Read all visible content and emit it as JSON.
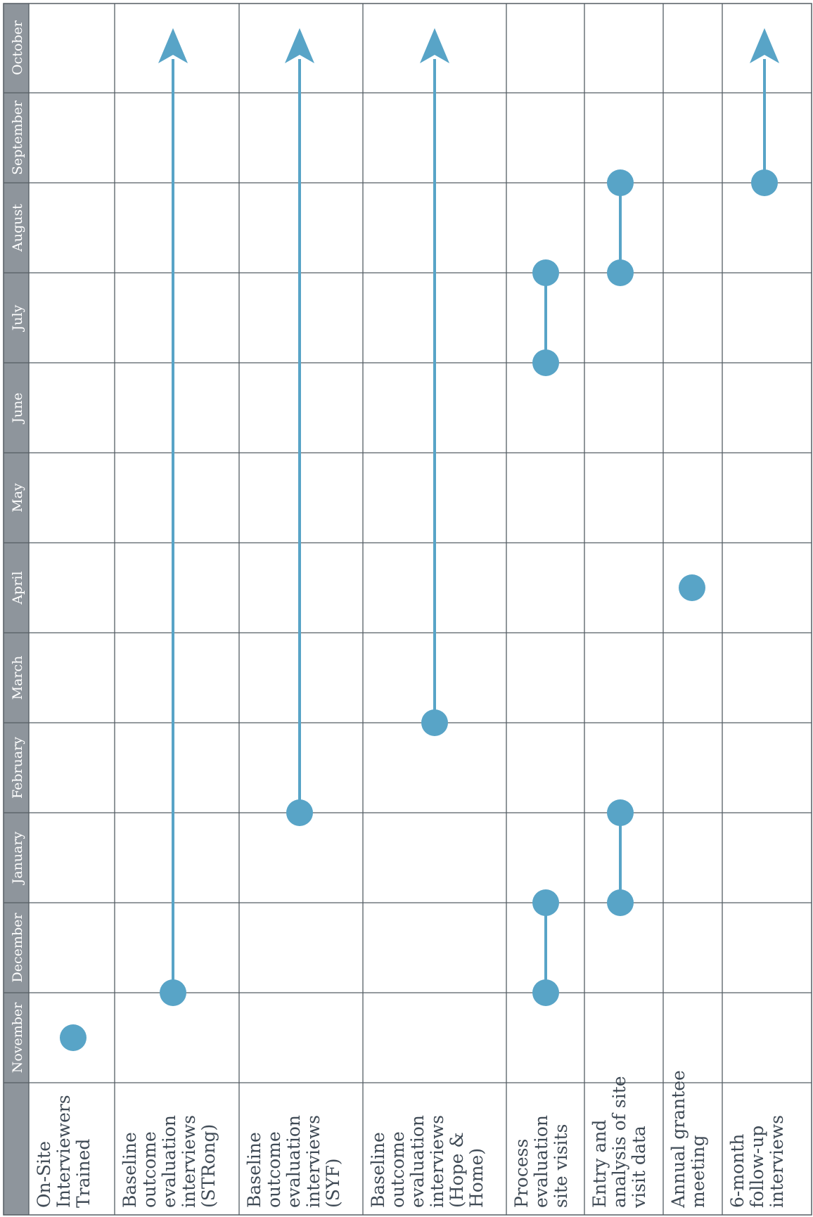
{
  "months": [
    "November",
    "December",
    "January",
    "February",
    "March",
    "April",
    "May",
    "June",
    "July",
    "August",
    "September",
    "October"
  ],
  "activities": [
    {
      "id": "on-site-interviewers-trained",
      "label_lines": [
        "On-Site",
        "Interviewers",
        "Trained"
      ]
    },
    {
      "id": "baseline-strong",
      "label_lines": [
        "Baseline",
        "outcome",
        "evaluation",
        "interviews",
        "(STRong)"
      ]
    },
    {
      "id": "baseline-syf",
      "label_lines": [
        "Baseline",
        "outcome",
        "evaluation",
        "interviews",
        "(SYF)"
      ]
    },
    {
      "id": "baseline-hope-home",
      "label_lines": [
        "Baseline",
        "outcome",
        "evaluation",
        "interviews",
        "(Hope &",
        "Home)"
      ]
    },
    {
      "id": "process-evaluation-site-visits",
      "label_lines": [
        "Process",
        "evaluation",
        "site visits"
      ]
    },
    {
      "id": "entry-analysis-site-visit-data",
      "label_lines": [
        "Entry and",
        "analysis of site",
        "visit data"
      ]
    },
    {
      "id": "annual-grantee-meeting",
      "label_lines": [
        "Annual grantee",
        "meeting"
      ]
    },
    {
      "id": "six-month-follow-up-interviews",
      "label_lines": [
        "6-month",
        "follow-up",
        "interviews"
      ]
    }
  ],
  "marks": [
    {
      "activity": 0,
      "type": "point",
      "at": 0.5
    },
    {
      "activity": 1,
      "type": "arrow",
      "from": 1.0,
      "to": 12.0
    },
    {
      "activity": 2,
      "type": "arrow",
      "from": 3.0,
      "to": 12.0
    },
    {
      "activity": 3,
      "type": "arrow",
      "from": 4.0,
      "to": 12.0
    },
    {
      "activity": 4,
      "type": "segment",
      "from": 1.0,
      "to": 2.0
    },
    {
      "activity": 4,
      "type": "segment",
      "from": 8.0,
      "to": 9.0
    },
    {
      "activity": 5,
      "type": "segment",
      "from": 2.0,
      "to": 3.0
    },
    {
      "activity": 5,
      "type": "segment",
      "from": 9.0,
      "to": 10.0
    },
    {
      "activity": 6,
      "type": "point",
      "at": 5.5
    },
    {
      "activity": 7,
      "type": "arrow",
      "from": 10.0,
      "to": 12.0
    }
  ],
  "colors": {
    "marker": "#58a4c7",
    "header_band": "#8e959c",
    "grid": "#555d63",
    "label_text": "#3f4a55"
  }
}
